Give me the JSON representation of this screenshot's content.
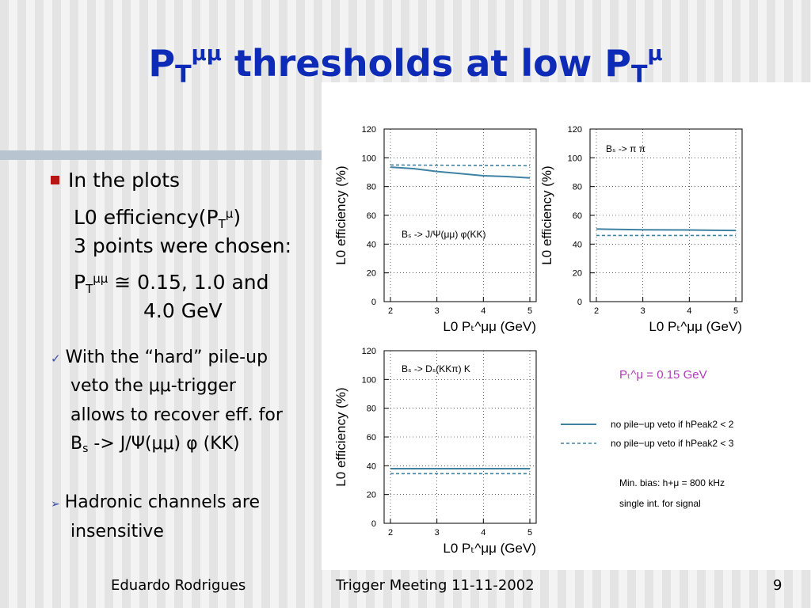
{
  "slide": {
    "title": {
      "p": "P",
      "t_sub": "T",
      "mumu_sup": "μμ",
      "middle": " thresholds at low P",
      "t_sub2": "T",
      "mu_sup": "μ"
    },
    "bullets": {
      "line1": "In the plots",
      "line2": {
        "pre": "L0 efficiency(P",
        "sub": "T",
        "sup": "μ",
        "post": ")"
      },
      "line3": "3 points were chosen:",
      "line4": {
        "pre": "P",
        "sub": "T",
        "sup": "μμ",
        "post": " ≅ 0.15, 1.0 and"
      },
      "line5": "4.0 GeV"
    },
    "check_item": {
      "line1": "With the “hard” pile-up",
      "line2": "veto the μμ-trigger",
      "line3": "allows to recover eff. for",
      "line4": {
        "pre": "B",
        "sub": "s",
        "post": " -> J/Ψ(μμ) φ (KK)"
      }
    },
    "arrow_item": {
      "line1": "Hadronic channels are",
      "line2": "insensitive"
    },
    "footer": {
      "author": "Eduardo Rodrigues",
      "meeting": "Trigger Meeting 11-11-2002",
      "page": "9"
    }
  },
  "colors": {
    "title": "#0e2bb8",
    "series": "#3f82a3",
    "bullet": "#b81414",
    "legend_title": "#b13ab8"
  },
  "chart_data": [
    {
      "type": "line",
      "annotation": "Bₛ -> J/Ψ(μμ) φ(KK)",
      "xlabel": "L0 Pₜ^μμ (GeV)",
      "ylabel": "L0 efficiency (%)",
      "xlim": [
        2,
        5
      ],
      "ylim": [
        0,
        120
      ],
      "xticks": [
        "2",
        "3",
        "4",
        "5"
      ],
      "yticks": [
        "0",
        "20",
        "40",
        "60",
        "80",
        "100",
        "120"
      ],
      "grid": true,
      "series": [
        {
          "style": "solid",
          "x": [
            2,
            2.5,
            3,
            3.5,
            4,
            4.5,
            5
          ],
          "y": [
            93.5,
            92.5,
            90.5,
            89,
            87.5,
            87,
            86
          ]
        },
        {
          "style": "dashed",
          "x": [
            2,
            5
          ],
          "y": [
            95,
            94.5
          ]
        }
      ]
    },
    {
      "type": "line",
      "annotation": "Bₛ -> π π",
      "xlabel": "L0 Pₜ^μμ (GeV)",
      "ylabel": "L0 efficiency (%)",
      "xlim": [
        2,
        5
      ],
      "ylim": [
        0,
        120
      ],
      "xticks": [
        "2",
        "3",
        "4",
        "5"
      ],
      "yticks": [
        "0",
        "20",
        "40",
        "60",
        "80",
        "100",
        "120"
      ],
      "grid": true,
      "series": [
        {
          "style": "solid",
          "x": [
            2,
            3,
            4,
            5
          ],
          "y": [
            50.5,
            50,
            49.8,
            49.5
          ]
        },
        {
          "style": "dashed",
          "x": [
            2,
            5
          ],
          "y": [
            46,
            46
          ]
        }
      ]
    },
    {
      "type": "line",
      "annotation": "Bₛ -> Dₛ(KKπ) K",
      "xlabel": "L0 Pₜ^μμ (GeV)",
      "ylabel": "L0 efficiency (%)",
      "xlim": [
        2,
        5
      ],
      "ylim": [
        0,
        120
      ],
      "xticks": [
        "2",
        "3",
        "4",
        "5"
      ],
      "yticks": [
        "0",
        "20",
        "40",
        "60",
        "80",
        "100",
        "120"
      ],
      "grid": true,
      "series": [
        {
          "style": "solid",
          "x": [
            2,
            5
          ],
          "y": [
            38,
            38
          ]
        },
        {
          "style": "dashed",
          "x": [
            2,
            5
          ],
          "y": [
            34.5,
            34.5
          ]
        }
      ]
    }
  ],
  "legend": {
    "title": "Pₜ^μ = 0.15 GeV",
    "entries": [
      {
        "style": "solid",
        "label": "no pile−up veto if hPeak2 < 2"
      },
      {
        "style": "dashed",
        "label": "no pile−up veto if hPeak2 < 3"
      }
    ],
    "note1": "Min. bias: h+μ = 800 kHz",
    "note2": "single int. for signal"
  }
}
